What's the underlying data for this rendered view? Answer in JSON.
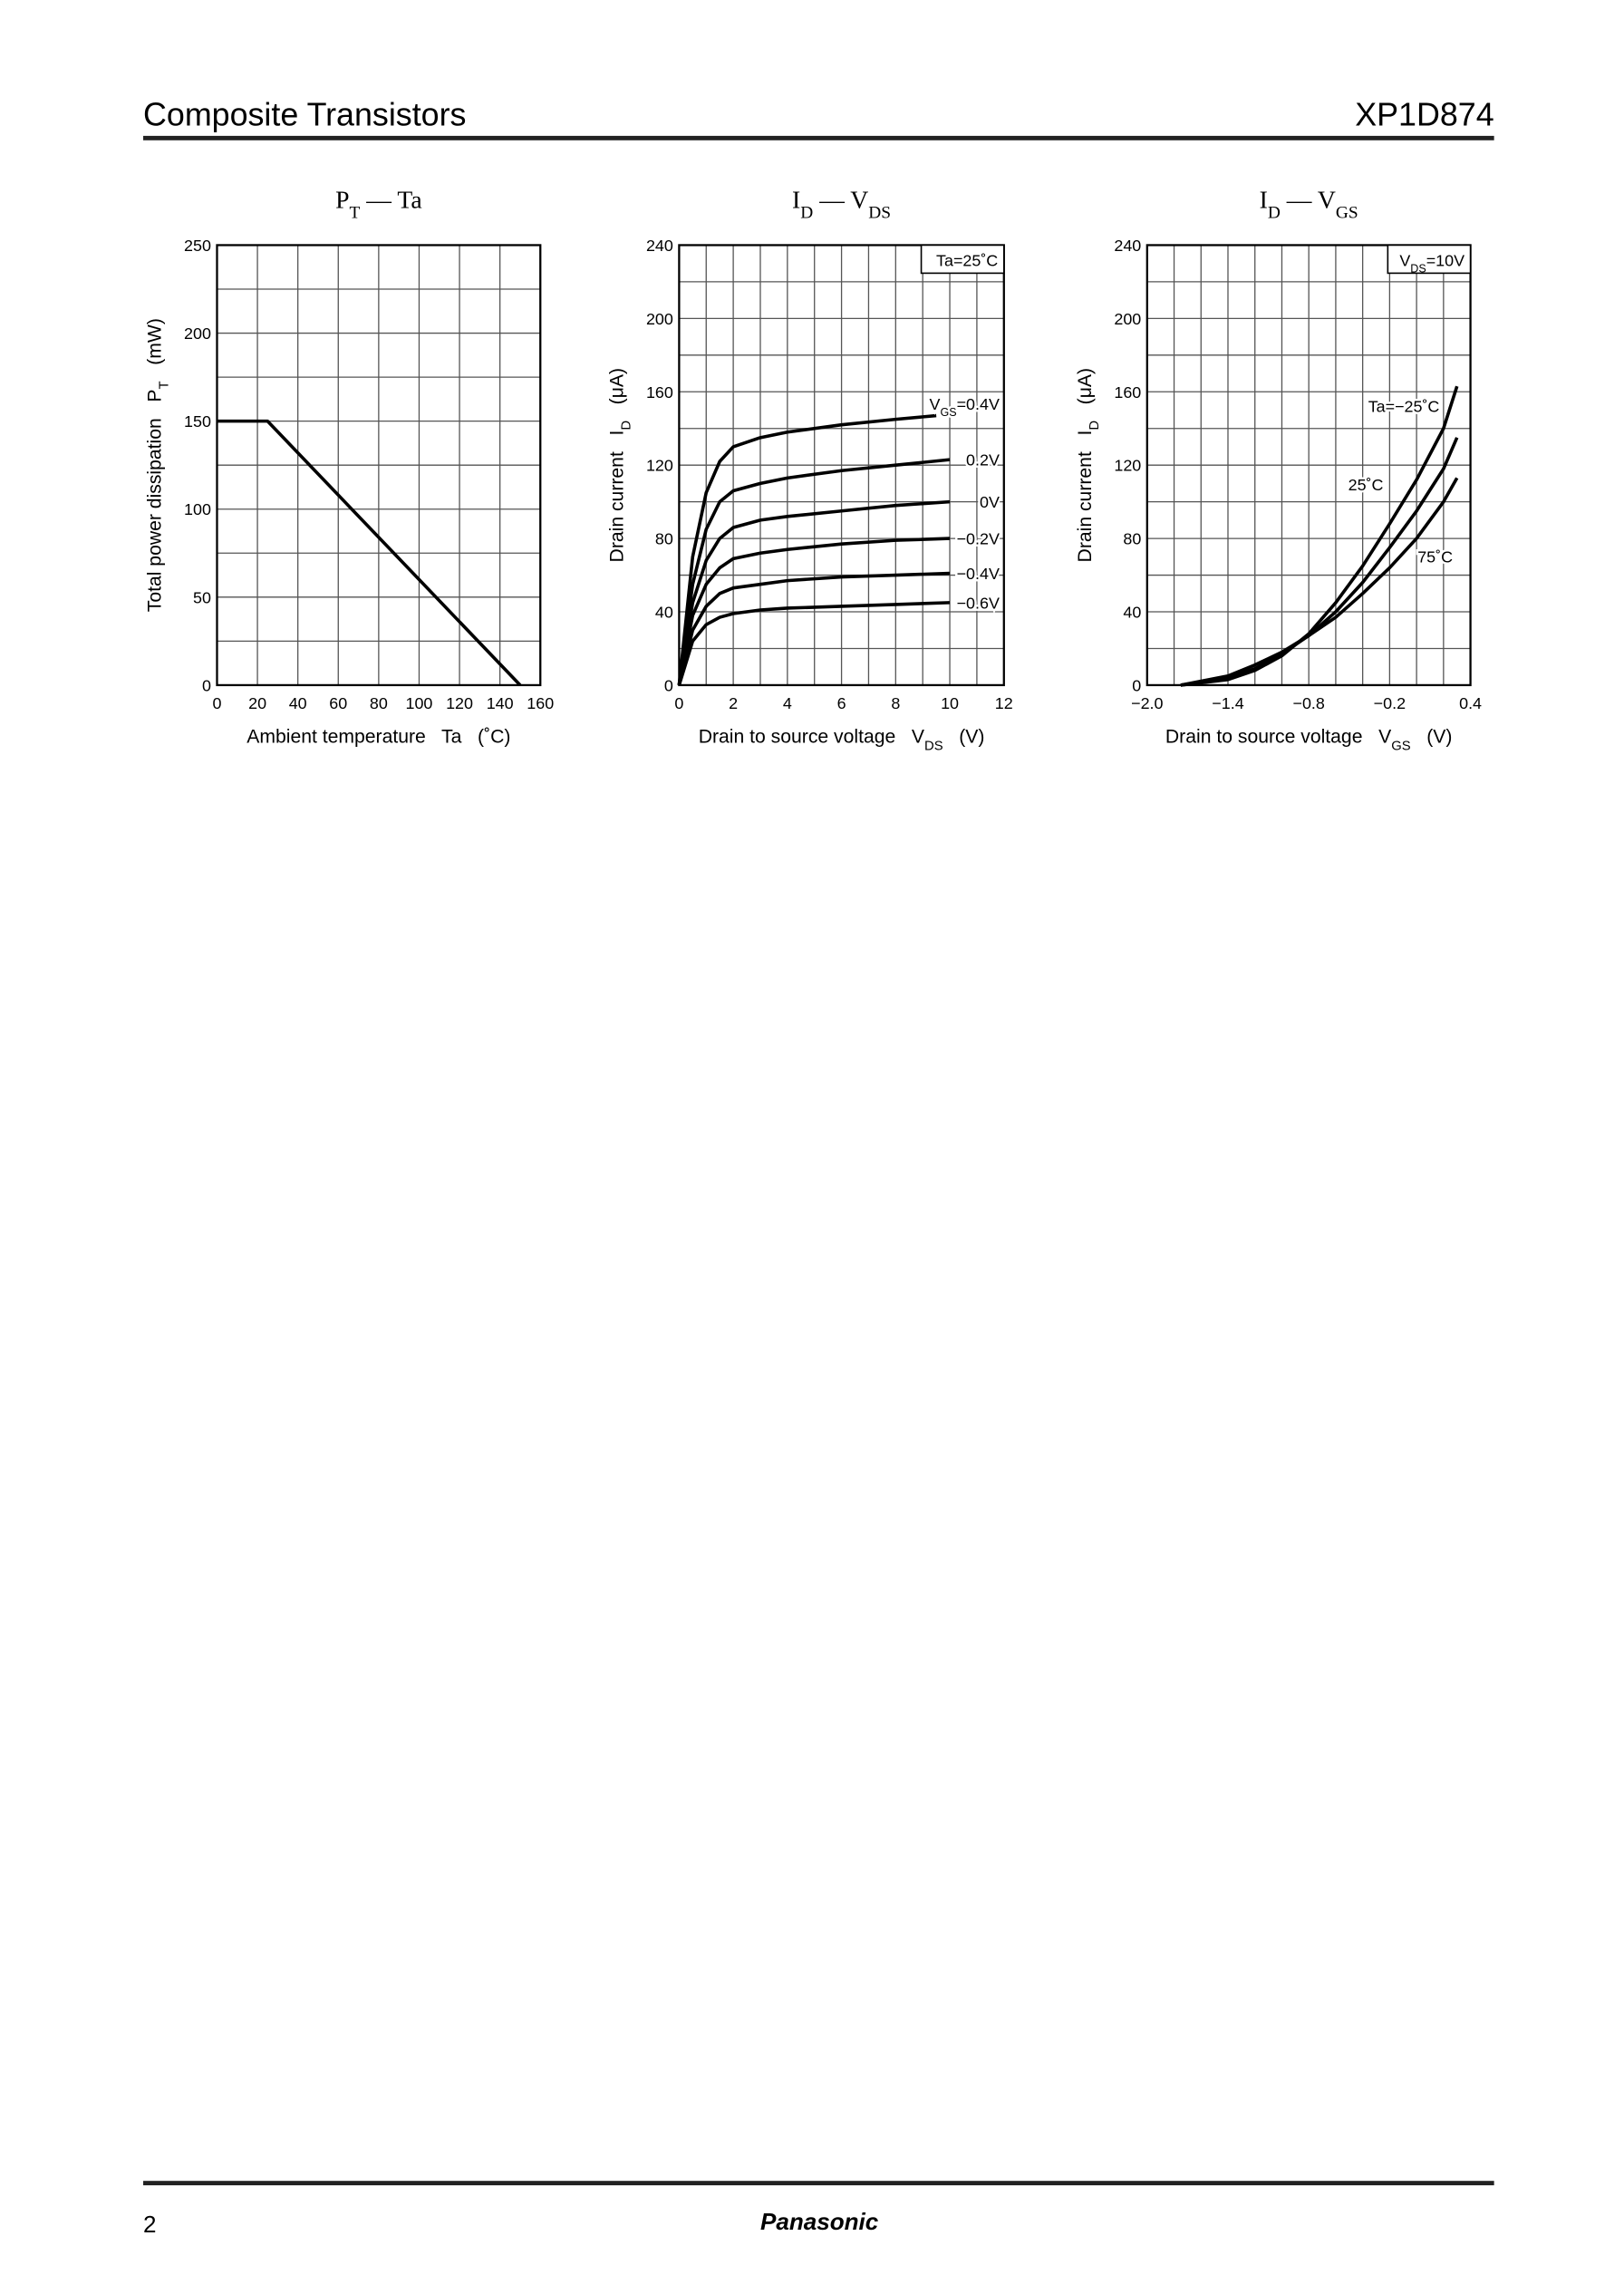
{
  "header": {
    "title": "Composite Transistors",
    "part": "XP1D874"
  },
  "footer": {
    "page": "2",
    "brand": "Panasonic"
  },
  "chart_data": [
    {
      "type": "line",
      "title": [
        "P",
        "T",
        " — Ta"
      ],
      "xlabel": [
        "Ambient temperature   Ta   (˚C)"
      ],
      "ylabel": [
        "Total power dissipation   P",
        "T",
        "   (mW)"
      ],
      "xlim": [
        0,
        160
      ],
      "xticks": [
        0,
        20,
        40,
        60,
        80,
        100,
        120,
        140,
        160
      ],
      "ylim": [
        0,
        250
      ],
      "yticks": [
        0,
        50,
        100,
        150,
        200,
        250
      ],
      "yminor": [
        25,
        75,
        125,
        175,
        225
      ],
      "grid": true,
      "series": [
        {
          "name": [
            "P",
            "T"
          ],
          "color": "#000000",
          "x": [
            0,
            25,
            150
          ],
          "values": [
            150,
            150,
            0
          ]
        }
      ]
    },
    {
      "type": "line",
      "title": [
        "I",
        "D",
        " — V",
        "DS"
      ],
      "xlabel": [
        "Drain to source voltage   V",
        "DS",
        "   (V)"
      ],
      "ylabel": [
        "Drain current   I",
        "D",
        "   (μA)"
      ],
      "annotation": [
        "Ta=25˚C"
      ],
      "xlim": [
        0,
        12
      ],
      "xticks": [
        0,
        2,
        4,
        6,
        8,
        10,
        12
      ],
      "xminor": [
        1,
        3,
        5,
        7,
        9,
        11
      ],
      "ylim": [
        0,
        240
      ],
      "yticks": [
        0,
        40,
        80,
        120,
        160,
        200,
        240
      ],
      "yminor": [
        20,
        60,
        100,
        140,
        180,
        220
      ],
      "grid": true,
      "series": [
        {
          "name": [
            "V",
            "GS",
            "=0.4V"
          ],
          "color": "#000000",
          "x": [
            0,
            0.5,
            1,
            1.5,
            2,
            3,
            4,
            6,
            8,
            9.5
          ],
          "values": [
            0,
            70,
            105,
            122,
            130,
            135,
            138,
            142,
            145,
            147
          ]
        },
        {
          "name": [
            "0.2V"
          ],
          "color": "#000000",
          "x": [
            0,
            0.5,
            1,
            1.5,
            2,
            3,
            4,
            6,
            8,
            10
          ],
          "values": [
            0,
            55,
            85,
            100,
            106,
            110,
            113,
            117,
            120,
            123
          ]
        },
        {
          "name": [
            "0V"
          ],
          "color": "#000000",
          "x": [
            0,
            0.5,
            1,
            1.5,
            2,
            3,
            4,
            6,
            8,
            10
          ],
          "values": [
            0,
            45,
            68,
            80,
            86,
            90,
            92,
            95,
            98,
            100
          ]
        },
        {
          "name": [
            "−0.2V"
          ],
          "color": "#000000",
          "x": [
            0,
            0.5,
            1,
            1.5,
            2,
            3,
            4,
            6,
            8,
            10
          ],
          "values": [
            0,
            38,
            55,
            64,
            69,
            72,
            74,
            77,
            79,
            80
          ]
        },
        {
          "name": [
            "−0.4V"
          ],
          "color": "#000000",
          "x": [
            0,
            0.5,
            1,
            1.5,
            2,
            3,
            4,
            6,
            8,
            10
          ],
          "values": [
            0,
            30,
            43,
            50,
            53,
            55,
            57,
            59,
            60,
            61
          ]
        },
        {
          "name": [
            "−0.6V"
          ],
          "color": "#000000",
          "x": [
            0,
            0.5,
            1,
            1.5,
            2,
            3,
            4,
            6,
            8,
            10
          ],
          "values": [
            0,
            24,
            33,
            37,
            39,
            41,
            42,
            43,
            44,
            45
          ]
        }
      ]
    },
    {
      "type": "line",
      "title": [
        "I",
        "D",
        " — V",
        "GS"
      ],
      "xlabel": [
        "Drain to source voltage   V",
        "GS",
        "   (V)"
      ],
      "ylabel": [
        "Drain current   I",
        "D",
        "   (μA)"
      ],
      "annotation": [
        "V",
        "DS",
        "=10V"
      ],
      "xlim": [
        -2.0,
        0.4
      ],
      "xticks": [
        {
          "value": -2.0,
          "label": "−2.0"
        },
        {
          "value": -1.4,
          "label": "−1.4"
        },
        {
          "value": -0.8,
          "label": "−0.8"
        },
        {
          "value": -0.2,
          "label": "−0.2"
        },
        0.4
      ],
      "xminor": [
        -1.8,
        -1.6,
        -1.2,
        -1.0,
        -0.6,
        -0.4,
        0,
        0.2
      ],
      "ylim": [
        0,
        240
      ],
      "yticks": [
        0,
        40,
        80,
        120,
        160,
        200,
        240
      ],
      "yminor": [
        20,
        60,
        100,
        140,
        180,
        220
      ],
      "grid": true,
      "series": [
        {
          "name": [
            "Ta=−25˚C"
          ],
          "color": "#000000",
          "x": [
            -1.75,
            -1.4,
            -1.2,
            -1.0,
            -0.8,
            -0.6,
            -0.4,
            -0.2,
            0,
            0.2,
            0.3
          ],
          "values": [
            0,
            3,
            8,
            16,
            28,
            45,
            65,
            88,
            112,
            140,
            163
          ]
        },
        {
          "name": [
            "25˚C"
          ],
          "color": "#000000",
          "x": [
            -1.75,
            -1.4,
            -1.2,
            -1.0,
            -0.8,
            -0.6,
            -0.4,
            -0.2,
            0,
            0.2,
            0.3
          ],
          "values": [
            0,
            4,
            9,
            17,
            27,
            40,
            56,
            75,
            95,
            118,
            135
          ]
        },
        {
          "name": [
            "75˚C"
          ],
          "color": "#000000",
          "x": [
            -1.75,
            -1.4,
            -1.2,
            -1.0,
            -0.8,
            -0.6,
            -0.4,
            -0.2,
            0,
            0.2,
            0.3
          ],
          "values": [
            0,
            5,
            11,
            18,
            27,
            37,
            50,
            64,
            80,
            100,
            113
          ]
        }
      ]
    }
  ]
}
